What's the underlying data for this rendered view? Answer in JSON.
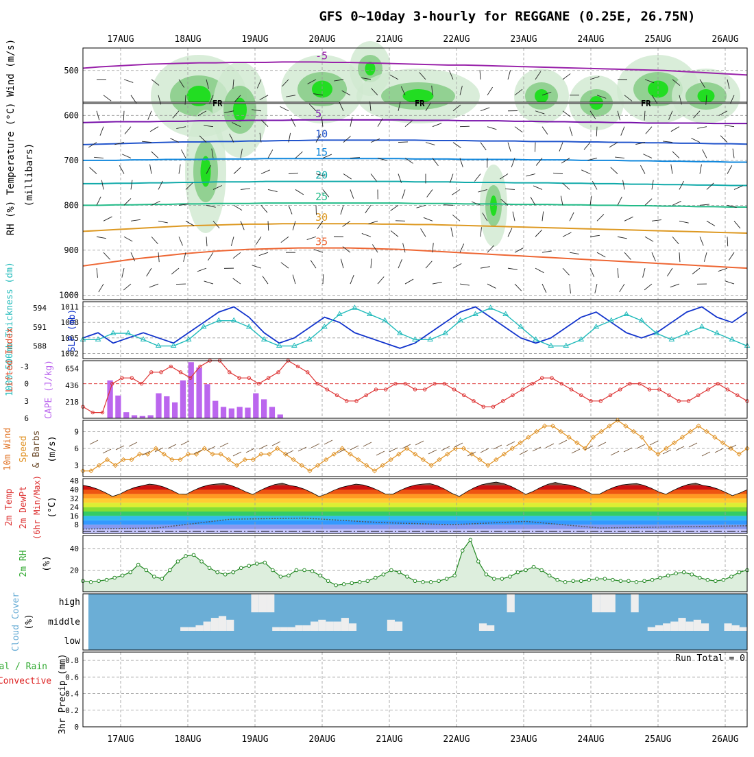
{
  "chart_data": {
    "type": "meteogram",
    "title": "GFS 0~10day 3-hourly for REGGANE (0.25E, 26.75N)",
    "dates": [
      "17AUG",
      "18AUG",
      "19AUG",
      "20AUG",
      "21AUG",
      "22AUG",
      "23AUG",
      "24AUG",
      "25AUG",
      "26AUG"
    ],
    "time_range_days": [
      -0.45,
      9.2
    ],
    "colors": {
      "text": "#000000",
      "grid": "#999999",
      "rh_green": "#33cc33",
      "temp_red": "#dd3333",
      "cape_purple": "#bb66ee",
      "wind_orange": "#e09020",
      "slp_blue": "#1133cc",
      "thk_cyan": "#22bbbb",
      "cloud_blue": "#6baed6",
      "cloud_white": "#eeeeee",
      "rh2m_green": "#228822",
      "precip_green": "#33aa33",
      "precip_red": "#dd2222"
    },
    "panels": [
      {
        "id": "upper",
        "ylabel_parts": [
          {
            "text": "RH (%)",
            "color": "#33cc33"
          },
          {
            "text": "Temperature",
            "color": "#e08020"
          },
          {
            "text": "(°C)",
            "color": "#dd3333"
          },
          {
            "text": "Wind (m/s)",
            "color": "#000000"
          }
        ],
        "ylabel2": "(millibars)",
        "yticks": [
          500,
          600,
          700,
          800,
          900,
          1000
        ],
        "ylim": [
          450,
          1010
        ],
        "freezing_label": "FR",
        "freezing_level_mb": 572,
        "isotherms": [
          {
            "label": "-5",
            "mb": [
              495,
              492,
              490,
              488,
              486,
              485,
              484,
              483,
              483,
              482,
              482,
              482,
              481,
              481,
              481,
              482,
              482,
              483,
              484,
              485,
              486,
              487,
              488,
              488,
              489,
              490,
              491,
              492,
              493,
              494,
              495,
              496,
              497,
              498,
              499,
              500,
              502,
              504,
              506,
              508,
              510
            ]
          },
          {
            "label": "5",
            "mb": [
              616,
              615,
              614,
              614,
              614,
              613,
              613,
              612,
              612,
              612,
              611,
              611,
              611,
              610,
              610,
              610,
              610,
              610,
              610,
              610,
              611,
              611,
              611,
              612,
              612,
              612,
              613,
              613,
              614,
              614,
              615,
              615,
              616,
              616,
              617,
              617,
              617,
              617,
              618,
              618,
              618
            ]
          },
          {
            "label": "10",
            "mb": [
              665,
              664,
              663,
              662,
              661,
              660,
              659,
              659,
              658,
              658,
              657,
              657,
              656,
              656,
              655,
              655,
              655,
              655,
              655,
              655,
              655,
              656,
              656,
              656,
              657,
              657,
              657,
              658,
              658,
              658,
              659,
              659,
              660,
              660,
              661,
              661,
              662,
              662,
              663,
              663,
              664
            ]
          },
          {
            "label": "15",
            "mb": [
              700,
              700,
              700,
              699,
              699,
              698,
              698,
              698,
              697,
              697,
              697,
              696,
              696,
              696,
              696,
              696,
              696,
              696,
              696,
              696,
              697,
              697,
              697,
              698,
              698,
              698,
              698,
              699,
              699,
              699,
              700,
              700,
              700,
              701,
              701,
              702,
              702,
              703,
              703,
              704,
              704
            ]
          },
          {
            "label": "20",
            "mb": [
              752,
              752,
              751,
              751,
              750,
              750,
              749,
              749,
              748,
              748,
              748,
              747,
              747,
              747,
              747,
              747,
              747,
              747,
              747,
              747,
              748,
              748,
              748,
              749,
              749,
              749,
              750,
              750,
              750,
              751,
              751,
              752,
              752,
              753,
              753,
              754,
              754,
              755,
              755,
              756,
              756
            ]
          },
          {
            "label": "25",
            "mb": [
              800,
              800,
              799,
              799,
              798,
              798,
              797,
              797,
              796,
              796,
              796,
              795,
              795,
              795,
              795,
              795,
              795,
              795,
              795,
              795,
              796,
              796,
              796,
              797,
              797,
              797,
              798,
              798,
              798,
              799,
              799,
              800,
              800,
              801,
              801,
              802,
              802,
              803,
              803,
              804,
              804
            ]
          },
          {
            "label": "30",
            "mb": [
              858,
              856,
              854,
              852,
              850,
              848,
              846,
              845,
              844,
              843,
              842,
              842,
              841,
              841,
              841,
              841,
              841,
              841,
              842,
              842,
              843,
              843,
              844,
              845,
              846,
              847,
              848,
              849,
              850,
              851,
              852,
              853,
              854,
              855,
              856,
              857,
              858,
              859,
              860,
              861,
              862
            ]
          },
          {
            "label": "35",
            "mb": [
              935,
              930,
              925,
              920,
              916,
              912,
              908,
              905,
              902,
              900,
              898,
              897,
              896,
              895,
              895,
              895,
              895,
              896,
              897,
              898,
              900,
              902,
              904,
              906,
              908,
              910,
              912,
              914,
              916,
              918,
              920,
              922,
              924,
              926,
              928,
              930,
              932,
              934,
              936,
              938,
              940
            ]
          }
        ],
        "rh_levels_percent": [
          30,
          50,
          70,
          90
        ]
      },
      {
        "id": "slp_thk",
        "ylabel_left": "1000-500mb Thickness (dm)",
        "ylabel_right": "SLP (mb)",
        "yticks_left": [
          588,
          591,
          594
        ],
        "yticks_right": [
          1002,
          1005,
          1008,
          1011
        ],
        "series": [
          {
            "name": "SLP",
            "color": "#1133cc",
            "values": [
              1005,
              1006,
              1004,
              1005,
              1006,
              1005,
              1004,
              1006,
              1008,
              1010,
              1011,
              1009,
              1006,
              1004,
              1005,
              1007,
              1009,
              1008,
              1006,
              1005,
              1004,
              1003,
              1004,
              1006,
              1008,
              1010,
              1011,
              1009,
              1007,
              1005,
              1004,
              1005,
              1007,
              1009,
              1010,
              1008,
              1006,
              1005,
              1006,
              1008,
              1010,
              1011,
              1009,
              1008,
              1010
            ]
          },
          {
            "name": "Thickness",
            "color": "#22bbbb",
            "values": [
              589,
              589,
              590,
              590,
              589,
              588,
              588,
              589,
              591,
              592,
              592,
              591,
              589,
              588,
              588,
              589,
              591,
              593,
              594,
              593,
              592,
              590,
              589,
              589,
              590,
              592,
              593,
              594,
              593,
              591,
              589,
              588,
              588,
              589,
              591,
              592,
              593,
              592,
              590,
              589,
              590,
              591,
              590,
              589,
              588
            ]
          }
        ]
      },
      {
        "id": "cape_li",
        "ylabel_left": "Lifted Index",
        "ylabel_right": "CAPE (J/kg)",
        "yticks_left": [
          "-3",
          "0",
          "3",
          "6"
        ],
        "yticks_right": [
          218,
          436,
          654
        ],
        "cape_values": [
          0,
          0,
          0,
          500,
          300,
          80,
          40,
          30,
          40,
          330,
          290,
          210,
          500,
          740,
          670,
          450,
          230,
          150,
          130,
          150,
          140,
          330,
          250,
          150,
          50,
          0,
          0,
          0,
          0,
          0,
          0,
          0,
          0,
          0,
          0,
          0,
          0,
          0,
          0,
          0,
          0,
          0,
          0,
          0,
          0,
          0,
          0,
          0,
          0,
          0,
          0,
          0,
          0,
          0,
          0,
          0,
          0,
          0,
          0,
          0,
          0,
          0,
          0,
          0,
          0,
          0,
          0,
          0,
          0,
          0,
          0,
          0,
          0,
          0,
          0,
          0,
          0,
          0,
          0,
          0,
          0,
          0
        ],
        "li_values": [
          4,
          5,
          5,
          0,
          -1,
          -1,
          0,
          -2,
          -2,
          -3,
          -2,
          -1,
          -3,
          -4,
          -4,
          -2,
          -1,
          -1,
          0,
          -1,
          -2,
          -4,
          -3,
          -2,
          0,
          1,
          2,
          3,
          3,
          2,
          1,
          1,
          0,
          0,
          1,
          1,
          0,
          0,
          1,
          2,
          3,
          4,
          4,
          3,
          2,
          1,
          0,
          -1,
          -1,
          0,
          1,
          2,
          3,
          3,
          2,
          1,
          0,
          0,
          1,
          1,
          2,
          3,
          3,
          2,
          1,
          0,
          1,
          2,
          3
        ]
      },
      {
        "id": "wind10m",
        "ylabel_left": "10m Wind Speed & Barbs",
        "ylabel_right": "(m/s)",
        "yticks": [
          3,
          6,
          9
        ],
        "speed_values": [
          2,
          2,
          3,
          4,
          3,
          4,
          4,
          5,
          5,
          6,
          5,
          4,
          4,
          5,
          5,
          6,
          5,
          5,
          4,
          3,
          4,
          4,
          5,
          5,
          6,
          5,
          4,
          3,
          2,
          3,
          4,
          5,
          6,
          5,
          4,
          3,
          2,
          3,
          4,
          5,
          6,
          5,
          4,
          3,
          4,
          5,
          6,
          6,
          5,
          4,
          3,
          4,
          5,
          6,
          7,
          8,
          9,
          10,
          10,
          9,
          8,
          7,
          6,
          8,
          9,
          10,
          11,
          10,
          9,
          8,
          6,
          5,
          6,
          7,
          8,
          9,
          10,
          9,
          8,
          7,
          6,
          5,
          6
        ]
      },
      {
        "id": "temp2m",
        "ylabel_left": "2m Temp 2m DewPt (6hr Min/Max)",
        "ylabel_right": "(°C)",
        "yticks": [
          8,
          16,
          24,
          32,
          40,
          48
        ],
        "temp_max": [
          44,
          45,
          46,
          44,
          45,
          46,
          47,
          45,
          46,
          44
        ],
        "temp_min": [
          33,
          34,
          35,
          33,
          34,
          33,
          35,
          34,
          35,
          34
        ],
        "dewpoint": [
          4,
          5,
          13,
          14,
          10,
          8,
          11,
          5,
          6,
          7
        ]
      },
      {
        "id": "rh2m",
        "ylabel_left": "2m RH",
        "ylabel_right": "(%)",
        "yticks": [
          20,
          40
        ],
        "values": [
          10,
          9,
          10,
          11,
          13,
          15,
          18,
          25,
          20,
          14,
          12,
          20,
          28,
          33,
          34,
          28,
          22,
          18,
          16,
          18,
          22,
          24,
          26,
          27,
          20,
          14,
          15,
          20,
          20,
          19,
          15,
          10,
          6,
          7,
          8,
          9,
          10,
          13,
          16,
          20,
          18,
          14,
          10,
          9,
          9,
          10,
          12,
          15,
          38,
          48,
          28,
          16,
          12,
          12,
          14,
          18,
          20,
          23,
          20,
          15,
          11,
          9,
          10,
          10,
          11,
          12,
          12,
          11,
          10,
          10,
          9,
          10,
          11,
          13,
          15,
          17,
          18,
          16,
          13,
          11,
          10,
          11,
          14,
          18,
          20
        ]
      },
      {
        "id": "clouds",
        "ylabel": "Cloud Cover (%)",
        "layer_labels": [
          "high",
          "middle",
          "low"
        ],
        "high": [
          0,
          0,
          0,
          0,
          0,
          0,
          0,
          0,
          0,
          0,
          0,
          0,
          0,
          0,
          0,
          0,
          0,
          0,
          0,
          0,
          0,
          1,
          1,
          1,
          0,
          0,
          0,
          0,
          0,
          0,
          0,
          0,
          0,
          0,
          0,
          0,
          0,
          0,
          0,
          0,
          0,
          0,
          0,
          0,
          0,
          0,
          0,
          0,
          0,
          0,
          0,
          0,
          0,
          0,
          1,
          0,
          0,
          0,
          0,
          0,
          0,
          0,
          0,
          0,
          0,
          1,
          1,
          1,
          0,
          0,
          1,
          0,
          0,
          0,
          0,
          0,
          0,
          0,
          0,
          0,
          0,
          0,
          0,
          0,
          0
        ],
        "middle": [
          0,
          0,
          0,
          0,
          0,
          0,
          0,
          0,
          0,
          0,
          0,
          0,
          0.2,
          0.2,
          0.3,
          0.5,
          0.7,
          0.8,
          0.6,
          0,
          0,
          0,
          0,
          0,
          0.2,
          0.2,
          0.2,
          0.3,
          0.3,
          0.5,
          0.6,
          0.5,
          0.5,
          0.7,
          0.4,
          0,
          0,
          0,
          0,
          0.6,
          0.5,
          0,
          0,
          0,
          0,
          0,
          0,
          0,
          0,
          0,
          0,
          0.4,
          0.3,
          0,
          0,
          0,
          0,
          0,
          0,
          0,
          0,
          0,
          0,
          0,
          0,
          0,
          0,
          0,
          0,
          0,
          0,
          0,
          0,
          0.2,
          0.3,
          0.4,
          0.5,
          0.7,
          0.5,
          0.6,
          0.4,
          0,
          0,
          0.4,
          0.3,
          0.2
        ],
        "low": []
      },
      {
        "id": "precip",
        "ylabel_left": "Total / Rain Convective",
        "ylabel_right": "3hr Precip (mm)",
        "yticks": [
          0,
          0.2,
          0.4,
          0.6,
          0.8
        ],
        "run_total_label": "Run Total = 0",
        "total": [],
        "convective": []
      }
    ]
  }
}
